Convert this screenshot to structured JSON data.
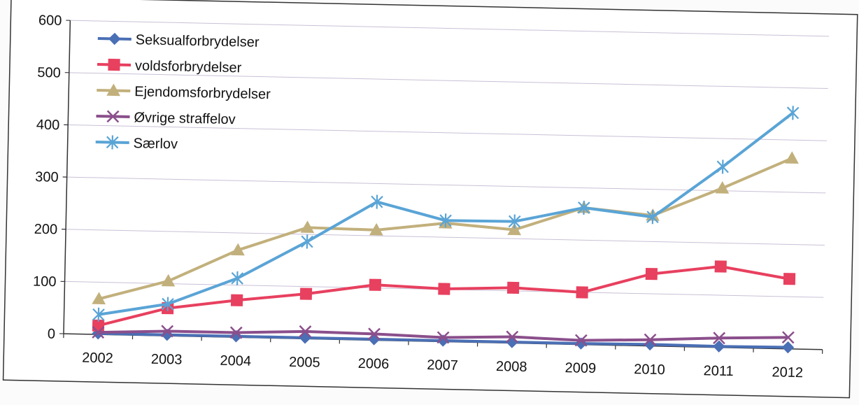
{
  "chart_data": {
    "type": "line",
    "categories": [
      "2002",
      "2003",
      "2004",
      "2005",
      "2006",
      "2007",
      "2008",
      "2009",
      "2010",
      "2011",
      "2012"
    ],
    "ylim": [
      0,
      600
    ],
    "y_ticks": [
      "0",
      "100",
      "200",
      "300",
      "400",
      "500",
      "600"
    ],
    "grid": true,
    "legend_position": "top-left",
    "series": [
      {
        "name": "Seksualforbrydelser",
        "color": "#4a6fb5",
        "marker": "diamond",
        "values": [
          2,
          2,
          2,
          2,
          2,
          2,
          2,
          2,
          3,
          2,
          3
        ]
      },
      {
        "name": "voldsforbrydelser",
        "color": "#e8405f",
        "marker": "square",
        "values": [
          17,
          53,
          71,
          86,
          106,
          101,
          106,
          100,
          138,
          155,
          134
        ]
      },
      {
        "name": "Ejendomsforbrydelser",
        "color": "#c2b07c",
        "marker": "triangle",
        "values": [
          68,
          105,
          167,
          213,
          211,
          227,
          217,
          262,
          250,
          305,
          365
        ]
      },
      {
        "name": "Øvrige straffelov",
        "color": "#8b4f8c",
        "marker": "x",
        "values": [
          4,
          9,
          9,
          14,
          12,
          8,
          12,
          8,
          12,
          18,
          22
        ]
      },
      {
        "name": "Særlov",
        "color": "#5aa4d6",
        "marker": "star",
        "values": [
          38,
          61,
          113,
          186,
          265,
          232,
          233,
          262,
          247,
          346,
          452
        ]
      }
    ]
  }
}
